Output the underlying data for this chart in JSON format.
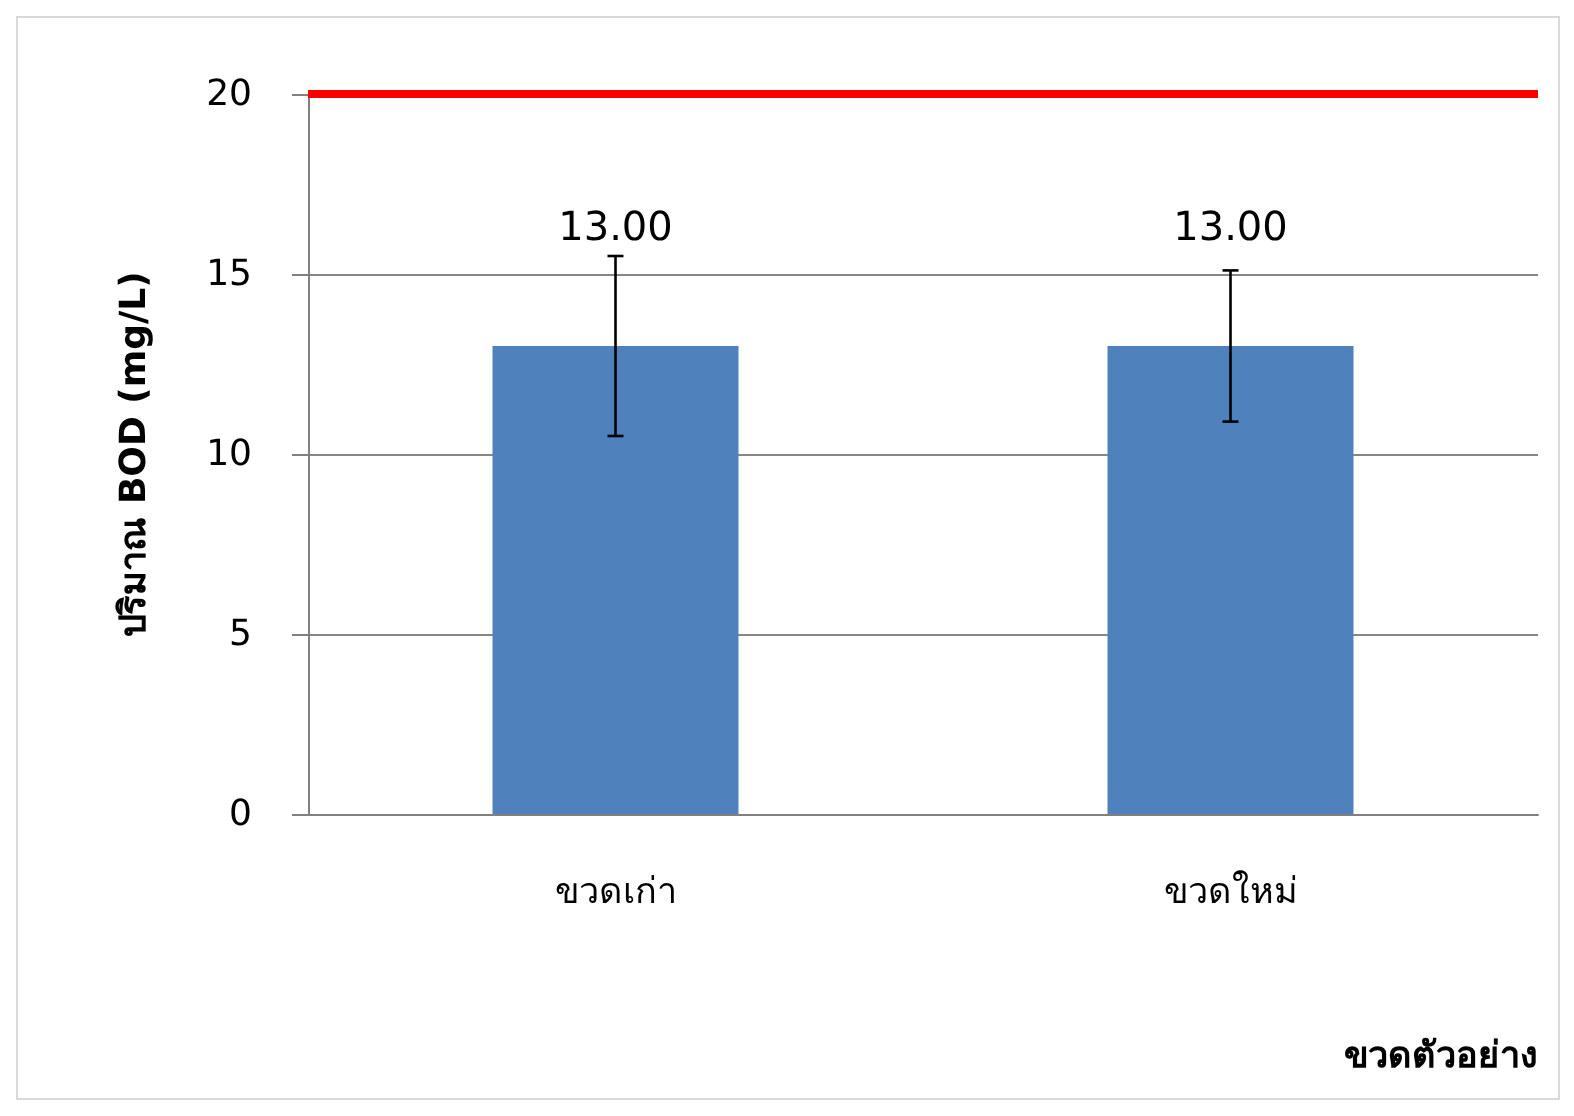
{
  "chart_data": {
    "type": "bar",
    "categories": [
      "ขวดเก่า",
      "ขวดใหม่"
    ],
    "series": [
      {
        "color": "#4f81bd",
        "values": [
          13,
          13
        ],
        "errors": [
          2.5,
          2.1
        ],
        "value_labels": [
          "13.00",
          "13.00"
        ]
      }
    ],
    "xlabel": "ขวดตัวอย่าง",
    "ylabel": "ปริมาณ BOD (mg/L)",
    "ylim": [
      0,
      20
    ],
    "yticks": [
      0,
      5,
      10,
      15,
      20
    ],
    "grid": "y",
    "ref_lines": [
      {
        "axis": "y",
        "value": 20,
        "color": "#ff0000"
      }
    ]
  }
}
